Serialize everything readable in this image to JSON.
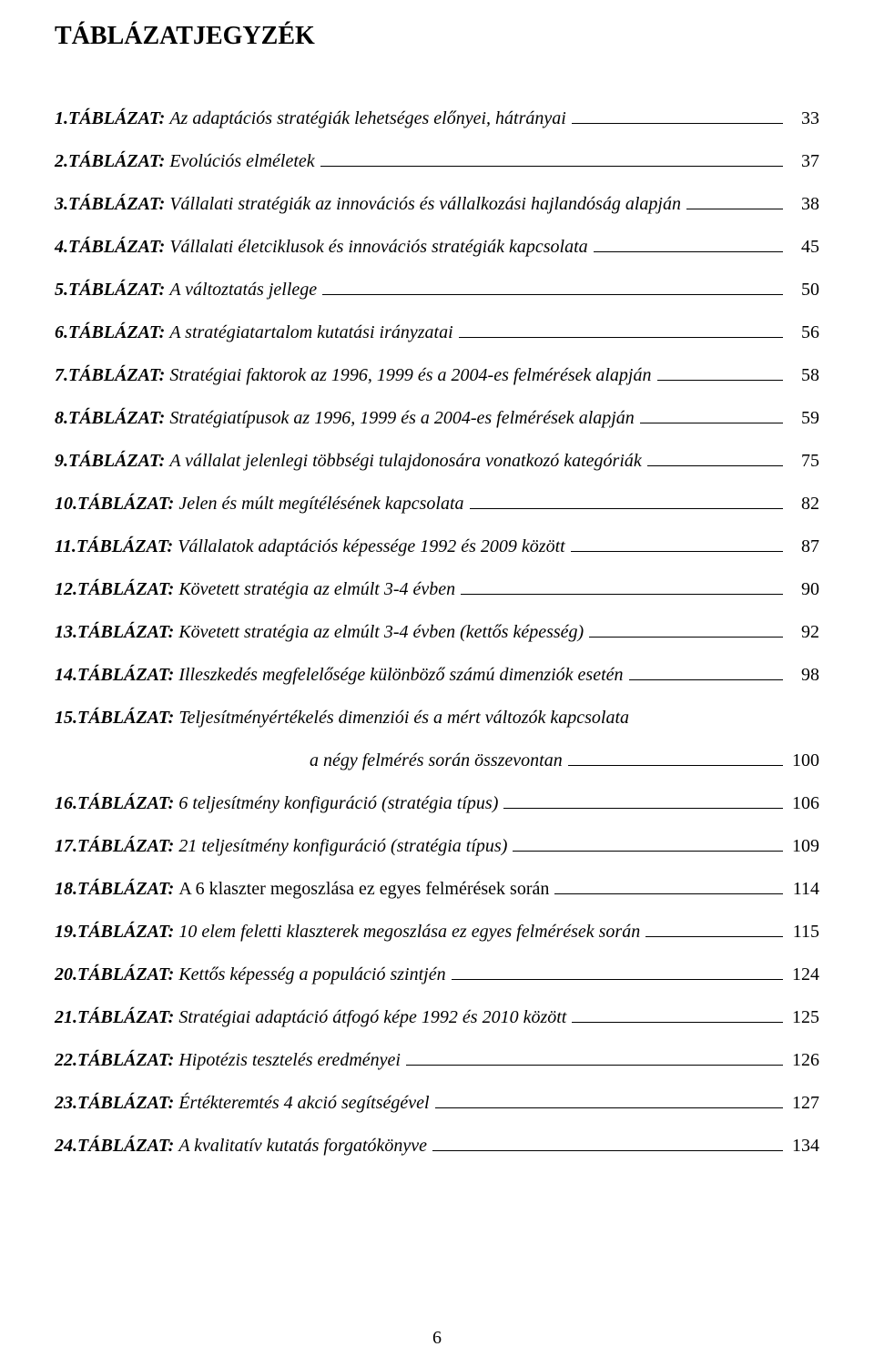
{
  "heading": "TÁBLÁZATJEGYZÉK",
  "label": "TÁBLÁZAT:",
  "page_number": "6",
  "entries": [
    {
      "num": "1. ",
      "title": "Az adaptációs stratégiák lehetséges előnyei, hátrányai",
      "italic": true,
      "page": "33"
    },
    {
      "num": "2. ",
      "title": "Evolúciós elméletek",
      "italic": true,
      "page": "37"
    },
    {
      "num": "3. ",
      "title": "Vállalati stratégiák az innovációs és vállalkozási hajlandóság alapján",
      "italic": true,
      "page": "38"
    },
    {
      "num": "4. ",
      "title": "Vállalati életciklusok és innovációs stratégiák kapcsolata",
      "italic": true,
      "page": "45"
    },
    {
      "num": "5. ",
      "title": "A változtatás jellege",
      "italic": true,
      "page": "50"
    },
    {
      "num": "6. ",
      "title": "A stratégiatartalom kutatási irányzatai",
      "italic": true,
      "page": "56"
    },
    {
      "num": "7. ",
      "title": "Stratégiai faktorok az 1996, 1999 és a 2004-es felmérések alapján",
      "italic": true,
      "page": "58"
    },
    {
      "num": "8. ",
      "title": "Stratégiatípusok az 1996, 1999 és a 2004-es felmérések alapján",
      "italic": true,
      "page": "59"
    },
    {
      "num": "9. ",
      "title": "A vállalat jelenlegi többségi tulajdonosára vonatkozó kategóriák",
      "italic": true,
      "page": "75"
    },
    {
      "num": "10. ",
      "title": "Jelen és múlt megítélésének kapcsolata",
      "italic": true,
      "page": "82"
    },
    {
      "num": "11. ",
      "title": "Vállalatok adaptációs képessége 1992 és 2009 között",
      "italic": true,
      "page": "87"
    },
    {
      "num": "12. ",
      "title": "Követett stratégia az elmúlt 3-4 évben",
      "italic": true,
      "page": "90"
    },
    {
      "num": "13. ",
      "title": "Követett stratégia az elmúlt 3-4 évben (kettős képesség)",
      "italic": true,
      "page": "92"
    },
    {
      "num": "14. ",
      "title": "Illeszkedés megfelelősége különböző számú dimenziók esetén",
      "italic": true,
      "page": "98"
    },
    {
      "num": "15. ",
      "title": "Teljesítményértékelés dimenziói és a mért változók kapcsolata",
      "italic": true,
      "page": "",
      "sub": {
        "title": "a négy felmérés során összevontan",
        "page": "100"
      }
    },
    {
      "num": "16. ",
      "title": "6 teljesítmény konfiguráció (stratégia típus)",
      "italic": true,
      "page": "106"
    },
    {
      "num": "17. ",
      "title": "21 teljesítmény konfiguráció (stratégia típus)",
      "italic": true,
      "page": "109"
    },
    {
      "num": "18. ",
      "title": "A 6 klaszter megoszlása ez egyes felmérések során",
      "italic": false,
      "page": "114"
    },
    {
      "num": "19. ",
      "title": "10 elem feletti klaszterek megoszlása ez egyes felmérések során",
      "italic": true,
      "page": "115"
    },
    {
      "num": "20. ",
      "title": "Kettős képesség a populáció szintjén",
      "italic": true,
      "page": "124"
    },
    {
      "num": "21. ",
      "title": "Stratégiai adaptáció átfogó képe 1992 és 2010 között",
      "italic": true,
      "page": "125"
    },
    {
      "num": "22. ",
      "title": "Hipotézis tesztelés eredményei",
      "italic": true,
      "page": "126"
    },
    {
      "num": "23. ",
      "title": "Értékteremtés 4 akció segítségével",
      "italic": true,
      "page": "127"
    },
    {
      "num": "24. ",
      "title": "A kvalitatív kutatás forgatókönyve",
      "italic": true,
      "page": "134"
    }
  ]
}
